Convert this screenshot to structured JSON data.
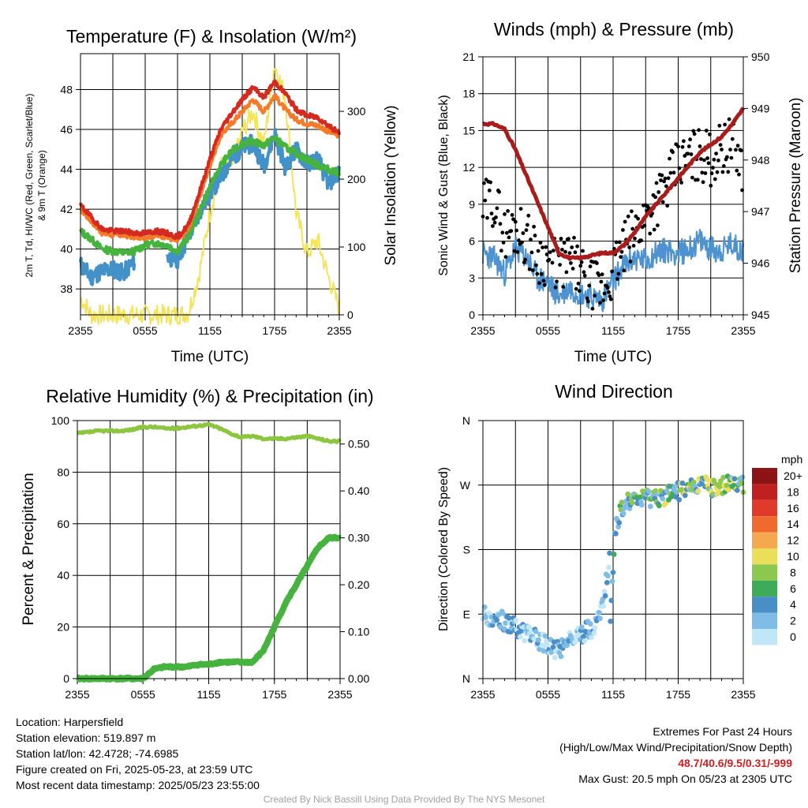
{
  "x_ticks": [
    "2355",
    "0555",
    "1155",
    "1755",
    "2355"
  ],
  "chart_data": [
    {
      "type": "line",
      "title": "Temperature (F) & Insolation (W/m²)",
      "xlabel": "Time (UTC)",
      "ylabel": "2m T, Td, HI/WC (Red, Green, Scarlet/Blue) & 9m T (Orange)",
      "ylabel_line1": "2m T, Td, HI/WC (Red, Green, Scarlet/Blue)",
      "ylabel_line2": "& 9m T (Orange)",
      "y2label": "Solar Insolation (Yellow)",
      "ylim": [
        36.7,
        49.8
      ],
      "y2lim": [
        0,
        385
      ],
      "yticks": [
        38,
        40,
        42,
        44,
        46,
        48
      ],
      "y2ticks": [
        0,
        100,
        200,
        300
      ],
      "x_hours": [
        0,
        1,
        2,
        3,
        4,
        5,
        6,
        7,
        8,
        9,
        10,
        11,
        12,
        13,
        14,
        15,
        16,
        17,
        18,
        19,
        20,
        21,
        22,
        23,
        24
      ],
      "series": [
        {
          "color": "#d42a20",
          "values": [
            42.2,
            41.6,
            41.0,
            40.9,
            40.9,
            40.8,
            40.8,
            40.9,
            40.8,
            40.6,
            41.2,
            42.8,
            44.5,
            46.0,
            46.8,
            47.5,
            48.1,
            47.6,
            48.4,
            47.8,
            47.0,
            46.7,
            46.6,
            46.2,
            45.8
          ]
        },
        {
          "color": "#f47b2a",
          "values": [
            42.0,
            41.4,
            40.8,
            40.7,
            40.7,
            40.6,
            40.6,
            40.7,
            40.6,
            40.4,
            41.0,
            42.5,
            44.2,
            45.7,
            46.3,
            46.9,
            47.5,
            46.9,
            47.7,
            47.0,
            46.5,
            46.3,
            46.2,
            45.9,
            45.7
          ]
        },
        {
          "color": "#47b33f",
          "values": [
            40.9,
            40.5,
            40.0,
            39.9,
            39.8,
            39.9,
            40.2,
            40.3,
            40.2,
            39.9,
            40.6,
            41.8,
            43.1,
            44.2,
            44.9,
            45.3,
            45.4,
            45.2,
            45.6,
            45.1,
            44.8,
            44.5,
            44.2,
            44.0,
            43.8
          ]
        },
        {
          "color": "#4291c8",
          "values": [
            39.2,
            38.6,
            38.9,
            39.0,
            38.8,
            39.4,
            null,
            null,
            39.6,
            39.5,
            40.6,
            41.8,
            42.8,
            43.6,
            44.5,
            45.1,
            45.3,
            44.2,
            45.8,
            44.1,
            45.0,
            44.3,
            44.5,
            43.3,
            43.9
          ]
        },
        {
          "color": "#f3e459",
          "axis": "y2",
          "values": [
            25,
            0,
            0,
            0,
            0,
            0,
            0,
            0,
            0,
            0,
            3,
            60,
            150,
            220,
            215,
            270,
            300,
            250,
            370,
            320,
            150,
            90,
            110,
            55,
            10
          ]
        }
      ]
    },
    {
      "type": "scatter",
      "title": "Winds (mph) & Pressure (mb)",
      "xlabel": "Time (UTC)",
      "ylabel": "Sonic Wind & Gust (Blue, Black)",
      "y2label": "Station Pressure (Maroon)",
      "ylim": [
        0,
        21
      ],
      "y2lim": [
        945,
        950
      ],
      "yticks": [
        0,
        3,
        6,
        9,
        12,
        15,
        18,
        21
      ],
      "y2ticks": [
        945,
        946,
        947,
        948,
        949,
        950
      ],
      "x_hours": [
        0,
        1,
        2,
        3,
        4,
        5,
        6,
        7,
        8,
        9,
        10,
        11,
        12,
        13,
        14,
        15,
        16,
        17,
        18,
        19,
        20,
        21,
        22,
        23,
        24
      ],
      "series": [
        {
          "color": "#4e93cf",
          "values": [
            5.0,
            4.6,
            3.4,
            5.4,
            4.7,
            3.0,
            2.6,
            1.5,
            2.2,
            1.8,
            1.5,
            1.2,
            2.8,
            4.0,
            4.6,
            4.4,
            5.1,
            5.3,
            5.0,
            5.4,
            6.0,
            5.4,
            5.2,
            5.8,
            5.2
          ]
        },
        {
          "color": "#000000",
          "values": [
            8.6,
            9.5,
            6.6,
            7.2,
            6.3,
            4.8,
            4.6,
            4.0,
            4.6,
            3.3,
            2.3,
            2.0,
            3.5,
            5.4,
            6.6,
            8.1,
            9.4,
            10.5,
            12.1,
            12.8,
            13.1,
            12.7,
            13.5,
            14.0,
            12.0
          ]
        },
        {
          "color": "#a81c1c",
          "axis": "y2",
          "values": [
            948.7,
            948.7,
            948.6,
            948.2,
            947.7,
            947.2,
            946.7,
            946.2,
            946.1,
            946.1,
            946.15,
            946.2,
            946.2,
            946.35,
            946.6,
            946.9,
            947.15,
            947.4,
            947.65,
            947.9,
            948.15,
            948.3,
            948.45,
            948.7,
            949.0
          ]
        }
      ]
    },
    {
      "type": "line",
      "title": "Relative Humidity (%) & Precipitation (in)",
      "xlabel": "",
      "ylabel": "Percent & Precipitation",
      "ylim": [
        0,
        100
      ],
      "y2lim": [
        0,
        0.55
      ],
      "yticks": [
        0,
        20,
        40,
        60,
        80,
        100
      ],
      "y2ticks": [
        "0.00",
        "0.10",
        "0.20",
        "0.30",
        "0.40",
        "0.50"
      ],
      "x_hours": [
        0,
        1,
        2,
        3,
        4,
        5,
        6,
        7,
        8,
        9,
        10,
        11,
        12,
        13,
        14,
        15,
        16,
        17,
        18,
        19,
        20,
        21,
        22,
        23,
        24
      ],
      "series": [
        {
          "color": "#8cc640",
          "values": [
            95,
            95.5,
            96,
            96,
            96,
            96.5,
            97.5,
            97.5,
            97,
            97,
            97.5,
            98,
            98.5,
            97,
            95,
            93.5,
            94,
            93,
            93,
            93,
            93.5,
            94,
            93,
            92,
            92
          ]
        },
        {
          "color": "#47b33f",
          "axis": "y2",
          "values": [
            0.0,
            0.0,
            0.0,
            0.0,
            0.0,
            0.0,
            0.0,
            0.02,
            0.025,
            0.025,
            0.025,
            0.03,
            0.03,
            0.035,
            0.035,
            0.035,
            0.035,
            0.06,
            0.11,
            0.16,
            0.2,
            0.24,
            0.28,
            0.3,
            0.3
          ]
        }
      ]
    },
    {
      "type": "scatter",
      "title": "Wind Direction",
      "xlabel": "",
      "ylabel": "Direction (Colored By Speed)",
      "ylim": [
        0,
        360
      ],
      "ytick_labels": [
        "N",
        "E",
        "S",
        "W",
        "N"
      ],
      "x_hours": [
        0,
        1,
        2,
        3,
        4,
        5,
        6,
        7,
        8,
        9,
        10,
        11,
        12,
        13,
        14,
        15,
        16,
        17,
        18,
        19,
        20,
        21,
        22,
        23,
        24
      ],
      "values": [
        88,
        85,
        80,
        70,
        65,
        55,
        45,
        40,
        55,
        62,
        70,
        95,
        200,
        245,
        245,
        250,
        252,
        255,
        262,
        265,
        270,
        268,
        270,
        272,
        270
      ],
      "colorbar": {
        "unit": "mph",
        "labels": [
          "20+",
          "18",
          "16",
          "14",
          "12",
          "10",
          "8",
          "6",
          "4",
          "2",
          "0"
        ],
        "colors": [
          "#8c1414",
          "#c02020",
          "#e03a2a",
          "#f06a30",
          "#f6a850",
          "#eadf5a",
          "#8cc850",
          "#3faa5a",
          "#4a8ec8",
          "#80bde6",
          "#c0e6f8"
        ]
      }
    }
  ],
  "footer": {
    "location": "Location: Harpersfield",
    "elevation": "Station elevation: 519.897 m",
    "latlon": "Station lat/lon: 42.4728; -74.6985",
    "created": "Figure created on Fri, 2025-05-23, at 23:59 UTC",
    "recent": "Most recent data timestamp: 2025/05/23 23:55:00",
    "extremes_title": "Extremes For Past 24 Hours",
    "extremes_subtitle": "(High/Low/Max Wind/Precipitation/Snow Depth)",
    "extremes_values": "48.7/40.6/9.5/0.31/-999",
    "max_gust": "Max Gust: 20.5 mph On 05/23 at 2305 UTC",
    "credit": "Created By Nick Bassill Using Data Provided By The NYS Mesonet"
  }
}
